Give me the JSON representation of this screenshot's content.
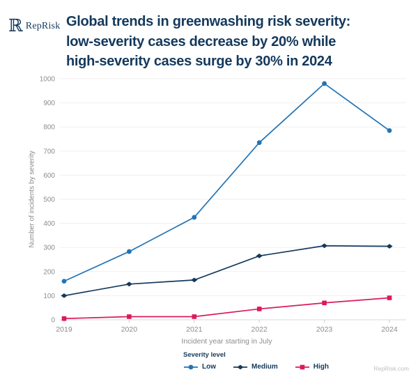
{
  "brand": {
    "logo_glyph": "ℝ",
    "logo_text": "RepRisk",
    "footer": "RepRisk.com"
  },
  "title": {
    "lines": [
      "Global trends in greenwashing risk severity:",
      "low-severity cases decrease by 20% while",
      "high-severity cases surge by 30% in 2024"
    ]
  },
  "colors": {
    "brand_navy": "#14395C",
    "low_blue": "#2274B5",
    "medium_navy": "#16395C",
    "high_pink": "#DB1A5C",
    "grid": "#EFEFEF",
    "axis_line": "#D9D9D9",
    "axis_text": "#8C8C8C"
  },
  "chart_data": {
    "type": "line",
    "x": [
      "2019",
      "2020",
      "2021",
      "2022",
      "2023",
      "2024"
    ],
    "series": [
      {
        "name": "Low",
        "marker": "circle",
        "color": "#2274B5",
        "values": [
          160,
          283,
          425,
          735,
          980,
          785
        ]
      },
      {
        "name": "Medium",
        "marker": "diamond",
        "color": "#16395C",
        "values": [
          100,
          148,
          165,
          265,
          307,
          305
        ]
      },
      {
        "name": "High",
        "marker": "square",
        "color": "#DB1A5C",
        "values": [
          5,
          13,
          13,
          45,
          70,
          91
        ]
      }
    ],
    "xlabel": "Incident year starting in July",
    "ylabel": "Number of incidents by severity",
    "ylim": [
      0,
      1000
    ],
    "ytick_step": 100,
    "grid": true,
    "legend_title": "Severity level",
    "legend_position": "bottom-left"
  }
}
